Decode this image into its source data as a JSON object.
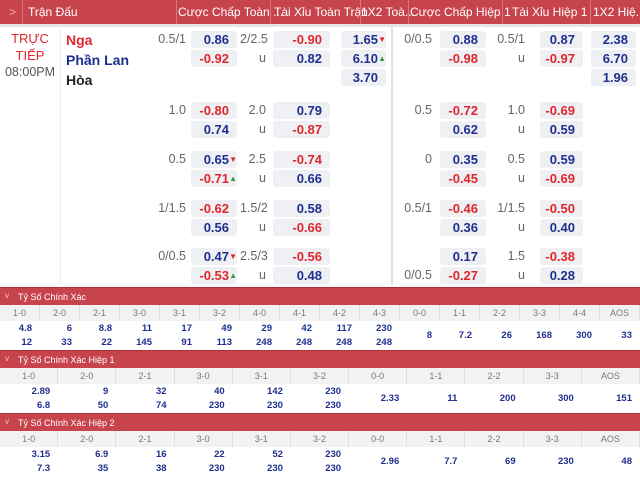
{
  "header": {
    "expand_icon": ">",
    "columns": [
      "Trận Đấu",
      "Cược Chấp Toàn ...",
      "Tài Xỉu Toàn Trận",
      "1X2 Toà...",
      "Cược Chấp Hiệp 1",
      "Tài Xỉu Hiệp 1",
      "1X2 Hiệ..."
    ]
  },
  "match": {
    "status": "TRỰC",
    "status2": "TIẾP",
    "time": "08:00PM",
    "home": "Nga",
    "away": "Phần Lan",
    "draw": "Hòa",
    "colors": {
      "home": "#e0262d",
      "away": "#1f2f8f",
      "draw": "#222222",
      "positive": "#1f2f8f",
      "negative": "#e0262d",
      "arrow_up": "#3a9a3a",
      "arrow_down": "#e0262d"
    },
    "groups": [
      {
        "hdp": {
          "lines": [
            "0.5/1",
            ""
          ],
          "values": [
            "0.86",
            "-0.92"
          ],
          "arrows": [
            "",
            ""
          ]
        },
        "ou": {
          "lines": [
            "2/2.5",
            "u"
          ],
          "values": [
            "-0.90",
            "0.82"
          ]
        },
        "x12": {
          "values": [
            "1.65",
            "6.10",
            "3.70"
          ],
          "arrows": [
            "down",
            "up",
            ""
          ]
        },
        "h1_hdp": {
          "lines": [
            "0/0.5",
            ""
          ],
          "values": [
            "0.88",
            "-0.98"
          ]
        },
        "h1_ou": {
          "lines": [
            "0.5/1",
            "u"
          ],
          "values": [
            "0.87",
            "-0.97"
          ]
        },
        "h1_x12": {
          "values": [
            "2.38",
            "6.70",
            "1.96"
          ]
        }
      },
      {
        "hdp": {
          "lines": [
            "1.0",
            ""
          ],
          "values": [
            "-0.80",
            "0.74"
          ],
          "arrows": [
            "",
            ""
          ]
        },
        "ou": {
          "lines": [
            "2.0",
            "u"
          ],
          "values": [
            "0.79",
            "-0.87"
          ]
        },
        "h1_hdp": {
          "lines": [
            "0.5",
            ""
          ],
          "values": [
            "-0.72",
            "0.62"
          ]
        },
        "h1_ou": {
          "lines": [
            "1.0",
            "u"
          ],
          "values": [
            "-0.69",
            "0.59"
          ]
        }
      },
      {
        "hdp": {
          "lines": [
            "0.5",
            ""
          ],
          "values": [
            "0.65",
            "-0.71"
          ],
          "arrows": [
            "down",
            "up"
          ]
        },
        "ou": {
          "lines": [
            "2.5",
            "u"
          ],
          "values": [
            "-0.74",
            "0.66"
          ]
        },
        "h1_hdp": {
          "lines": [
            "0",
            ""
          ],
          "values": [
            "0.35",
            "-0.45"
          ]
        },
        "h1_ou": {
          "lines": [
            "0.5",
            "u"
          ],
          "values": [
            "0.59",
            "-0.69"
          ]
        }
      },
      {
        "hdp": {
          "lines": [
            "1/1.5",
            ""
          ],
          "values": [
            "-0.62",
            "0.56"
          ],
          "arrows": [
            "",
            ""
          ]
        },
        "ou": {
          "lines": [
            "1.5/2",
            "u"
          ],
          "values": [
            "0.58",
            "-0.66"
          ]
        },
        "h1_hdp": {
          "lines": [
            "0.5/1",
            ""
          ],
          "values": [
            "-0.46",
            "0.36"
          ]
        },
        "h1_ou": {
          "lines": [
            "1/1.5",
            "u"
          ],
          "values": [
            "-0.50",
            "0.40"
          ]
        }
      },
      {
        "hdp": {
          "lines": [
            "0/0.5",
            ""
          ],
          "values": [
            "0.47",
            "-0.53"
          ],
          "arrows": [
            "down",
            "up"
          ]
        },
        "ou": {
          "lines": [
            "2.5/3",
            "u"
          ],
          "values": [
            "-0.56",
            "0.48"
          ]
        },
        "h1_hdp": {
          "lines": [
            "",
            "0/0.5"
          ],
          "values": [
            "0.17",
            "-0.27"
          ]
        },
        "h1_ou": {
          "lines": [
            "1.5",
            "u"
          ],
          "values": [
            "-0.38",
            "0.28"
          ]
        }
      }
    ]
  },
  "correct_score": [
    {
      "title": "Tỷ Số Chính Xác",
      "collapse_icon": "v",
      "labels": [
        "1-0",
        "2-0",
        "2-1",
        "3-0",
        "3-1",
        "3-2",
        "4-0",
        "4-1",
        "4-2",
        "4-3",
        "0-0",
        "1-1",
        "2-2",
        "3-3",
        "4-4",
        "AOS"
      ],
      "values": [
        [
          "4.8",
          "12"
        ],
        [
          "6",
          "33"
        ],
        [
          "8.8",
          "22"
        ],
        [
          "11",
          "145"
        ],
        [
          "17",
          "91"
        ],
        [
          "49",
          "113"
        ],
        [
          "29",
          "248"
        ],
        [
          "42",
          "248"
        ],
        [
          "117",
          "248"
        ],
        [
          "230",
          "248"
        ],
        [
          "8"
        ],
        [
          "7.2"
        ],
        [
          "26"
        ],
        [
          "168"
        ],
        [
          "300"
        ],
        [
          "33"
        ]
      ]
    },
    {
      "title": "Tỷ Số Chính Xác Hiệp 1",
      "collapse_icon": "v",
      "labels": [
        "1-0",
        "2-0",
        "2-1",
        "3-0",
        "3-1",
        "3-2",
        "0-0",
        "1-1",
        "2-2",
        "3-3",
        "AOS"
      ],
      "values": [
        [
          "2.89",
          "6.8"
        ],
        [
          "9",
          "50"
        ],
        [
          "32",
          "74"
        ],
        [
          "40",
          "230"
        ],
        [
          "142",
          "230"
        ],
        [
          "230",
          "230"
        ],
        [
          "2.33"
        ],
        [
          "11"
        ],
        [
          "200"
        ],
        [
          "300"
        ],
        [
          "151"
        ]
      ]
    },
    {
      "title": "Tỷ Số Chính Xác Hiệp 2",
      "collapse_icon": "v",
      "labels": [
        "1-0",
        "2-0",
        "2-1",
        "3-0",
        "3-1",
        "3-2",
        "0-0",
        "1-1",
        "2-2",
        "3-3",
        "AOS"
      ],
      "values": [
        [
          "3.15",
          "7.3"
        ],
        [
          "6.9",
          "35"
        ],
        [
          "16",
          "38"
        ],
        [
          "22",
          "230"
        ],
        [
          "52",
          "230"
        ],
        [
          "230",
          "230"
        ],
        [
          "2.96"
        ],
        [
          "7.7"
        ],
        [
          "69"
        ],
        [
          "230"
        ],
        [
          "48"
        ]
      ]
    }
  ]
}
